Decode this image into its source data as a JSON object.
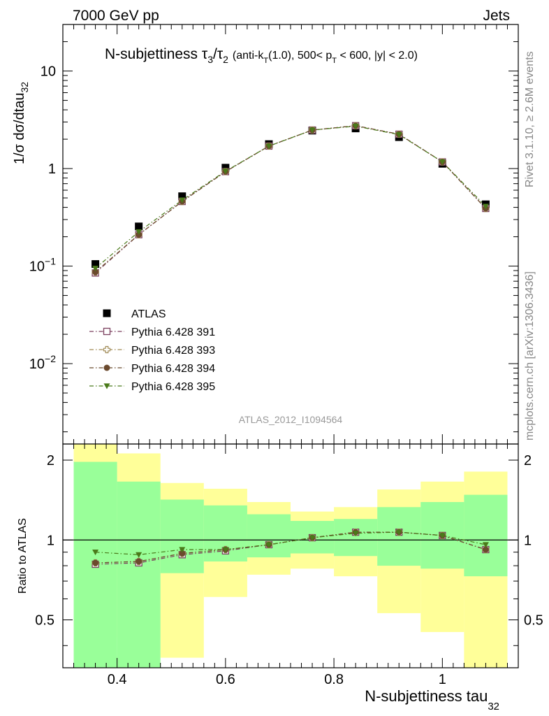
{
  "header": {
    "left": "7000 GeV pp",
    "right": "Jets"
  },
  "chart_data": [
    {
      "type": "scatter",
      "title_main": "N-subjettiness τ",
      "title_sub3": "3",
      "title_slash": "/τ",
      "title_sub2": "2",
      "title_detail_a": "(anti-k",
      "title_detail_sub_T": "T",
      "title_detail_b": "(1.0), 500< p",
      "title_detail_sub_T2": "T",
      "title_detail_c": " < 600, |y| < 2.0)",
      "ylabel": "1/σ dσ/dtau",
      "ylabel_sub": "32",
      "yscale": "log",
      "ylim": [
        0.0015,
        30
      ],
      "xlim": [
        0.3,
        1.14
      ],
      "y_ticks": [
        {
          "value": 10,
          "label": "10"
        },
        {
          "value": 1,
          "label": "1"
        },
        {
          "value": 0.1,
          "label_base": "10",
          "label_exp": "−1"
        },
        {
          "value": 0.01,
          "label_base": "10",
          "label_exp": "−2"
        }
      ],
      "x": [
        0.36,
        0.44,
        0.52,
        0.6,
        0.68,
        0.76,
        0.84,
        0.92,
        1.0,
        1.08
      ],
      "x_bin_edges": [
        0.32,
        0.4,
        0.48,
        0.56,
        0.64,
        0.72,
        0.8,
        0.88,
        0.96,
        1.04,
        1.12
      ],
      "series": [
        {
          "name": "ATLAS",
          "marker": "square-filled",
          "color": "#000000",
          "values": [
            0.105,
            0.255,
            0.52,
            1.02,
            1.78,
            2.45,
            2.58,
            2.1,
            1.12,
            0.43
          ]
        },
        {
          "name": "Pythia 6.428 391",
          "marker": "square-open",
          "color": "#7b3f5e",
          "values": [
            0.085,
            0.21,
            0.46,
            0.93,
            1.7,
            2.48,
            2.75,
            2.25,
            1.17,
            0.39
          ]
        },
        {
          "name": "Pythia 6.428 393",
          "marker": "cross-open",
          "color": "#a08a55",
          "values": [
            0.087,
            0.21,
            0.46,
            0.93,
            1.7,
            2.48,
            2.75,
            2.25,
            1.17,
            0.39
          ]
        },
        {
          "name": "Pythia 6.428 394",
          "marker": "circle-filled",
          "color": "#6b4a2e",
          "values": [
            0.087,
            0.21,
            0.46,
            0.93,
            1.7,
            2.48,
            2.75,
            2.25,
            1.17,
            0.39
          ]
        },
        {
          "name": "Pythia 6.428 395",
          "marker": "triangle-down-filled",
          "color": "#4a7a1a",
          "values": [
            0.095,
            0.225,
            0.475,
            0.94,
            1.7,
            2.48,
            2.72,
            2.23,
            1.17,
            0.41
          ]
        }
      ],
      "watermark": "ATLAS_2012_I1094564"
    },
    {
      "type": "scatter",
      "ylabel": "Ratio to ATLAS",
      "xlabel": "N-subjettiness tau",
      "xlabel_sub": "32",
      "yscale": "log",
      "ylim": [
        0.33,
        2.3
      ],
      "xlim": [
        0.3,
        1.14
      ],
      "y_ticks": [
        {
          "value": 2,
          "label": "2"
        },
        {
          "value": 1,
          "label": "1"
        },
        {
          "value": 0.5,
          "label": "0.5"
        }
      ],
      "x_ticks": [
        {
          "value": 0.4,
          "label": "0.4"
        },
        {
          "value": 0.6,
          "label": "0.6"
        },
        {
          "value": 0.8,
          "label": "0.8"
        },
        {
          "value": 1.0,
          "label": "1"
        }
      ],
      "x": [
        0.36,
        0.44,
        0.52,
        0.6,
        0.68,
        0.76,
        0.84,
        0.92,
        1.0,
        1.08
      ],
      "x_bin_edges": [
        0.32,
        0.4,
        0.48,
        0.56,
        0.64,
        0.72,
        0.8,
        0.88,
        0.96,
        1.04,
        1.12
      ],
      "band_outer": {
        "color": "#ffff99",
        "low": [
          0.3,
          0.43,
          0.36,
          0.61,
          0.74,
          0.78,
          0.73,
          0.53,
          0.45,
          0.33
        ],
        "high": [
          2.3,
          2.12,
          1.64,
          1.56,
          1.39,
          1.28,
          1.33,
          1.55,
          1.66,
          1.81
        ]
      },
      "band_inner": {
        "color": "#99ff99",
        "low": [
          0.3,
          0.3,
          0.75,
          0.83,
          0.86,
          0.89,
          0.87,
          0.8,
          0.78,
          0.73
        ],
        "high": [
          1.97,
          1.66,
          1.42,
          1.35,
          1.25,
          1.18,
          1.2,
          1.33,
          1.39,
          1.48
        ]
      },
      "series": [
        {
          "name": "Pythia 6.428 391",
          "marker": "square-open",
          "color": "#7b3f5e",
          "values": [
            0.81,
            0.82,
            0.88,
            0.91,
            0.96,
            1.02,
            1.07,
            1.07,
            1.04,
            0.92
          ]
        },
        {
          "name": "Pythia 6.428 393",
          "marker": "cross-open",
          "color": "#a08a55",
          "values": [
            0.82,
            0.83,
            0.89,
            0.92,
            0.96,
            1.02,
            1.07,
            1.07,
            1.04,
            0.92
          ]
        },
        {
          "name": "Pythia 6.428 394",
          "marker": "circle-filled",
          "color": "#6b4a2e",
          "values": [
            0.82,
            0.83,
            0.89,
            0.92,
            0.96,
            1.02,
            1.07,
            1.07,
            1.04,
            0.92
          ]
        },
        {
          "name": "Pythia 6.428 395",
          "marker": "triangle-down-filled",
          "color": "#4a7a1a",
          "values": [
            0.9,
            0.88,
            0.92,
            0.92,
            0.96,
            1.02,
            1.06,
            1.07,
            1.04,
            0.96
          ]
        }
      ]
    }
  ],
  "side_text": {
    "rivet": "Rivet 3.1.10, ≥ 2.6M events",
    "mcplots": "mcplots.cern.ch [arXiv:1306.3436]"
  }
}
